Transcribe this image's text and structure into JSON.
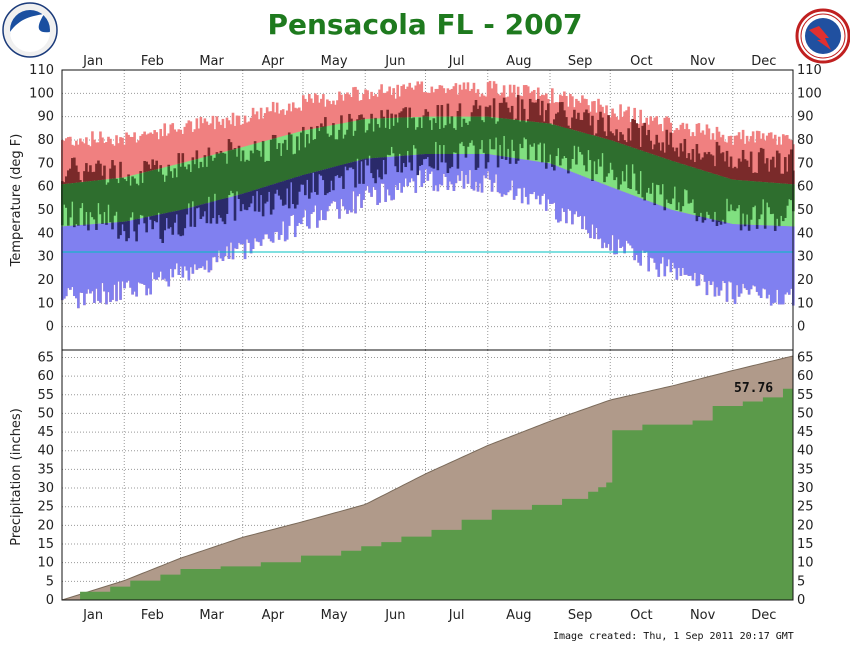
{
  "header": {
    "title": "Pensacola FL - 2007",
    "footer": "Image created: Thu, 1 Sep 2011 20:17 GMT"
  },
  "logos": {
    "left": "noaa-logo",
    "right": "national-weather-service-logo"
  },
  "colors": {
    "record_range": "#f08080",
    "normal_range": "#80e080",
    "actual_below": "#8080f0",
    "actual_dark_red": "#7a2a2a",
    "actual_dark_green": "#2e6e2e",
    "actual_dark_blue": "#2a2a6a",
    "normal_precip": "#b09a8a",
    "actual_precip": "#5b9a4a",
    "freezing_line": "#00c0c0",
    "title": "#1e7a1e"
  },
  "chart_data": [
    {
      "type": "bar",
      "panel": "temperature",
      "ylabel": "Temperature (deg F)",
      "ylim": [
        -10,
        110
      ],
      "yticks": [
        0,
        10,
        20,
        30,
        40,
        50,
        60,
        70,
        80,
        90,
        100,
        110
      ],
      "months": [
        "Jan",
        "Feb",
        "Mar",
        "Apr",
        "May",
        "Jun",
        "Jul",
        "Aug",
        "Sep",
        "Oct",
        "Nov",
        "Dec"
      ],
      "grid": true,
      "reference_line": 32,
      "series": [
        {
          "name": "record_range",
          "x_doy": [
            1,
            32,
            60,
            91,
            121,
            152,
            182,
            213,
            244,
            274,
            305,
            335,
            365
          ],
          "high": [
            79,
            80,
            84,
            89,
            95,
            99,
            101,
            101,
            98,
            92,
            85,
            80,
            79
          ],
          "low": [
            14,
            17,
            25,
            35,
            47,
            57,
            65,
            64,
            53,
            38,
            25,
            16,
            14
          ]
        },
        {
          "name": "normal_range",
          "x_doy": [
            1,
            32,
            60,
            91,
            121,
            152,
            182,
            213,
            244,
            274,
            305,
            335,
            365
          ],
          "high": [
            61,
            64,
            70,
            77,
            84,
            89,
            90,
            90,
            87,
            80,
            71,
            63,
            61
          ],
          "low": [
            43,
            45,
            50,
            57,
            65,
            72,
            74,
            74,
            70,
            60,
            50,
            44,
            43
          ]
        },
        {
          "name": "actual_2007_monthly",
          "x_doy": [
            16,
            46,
            75,
            106,
            136,
            167,
            197,
            228,
            259,
            289,
            320,
            350
          ],
          "high": [
            67,
            66,
            74,
            77,
            85,
            90,
            90,
            94,
            89,
            83,
            74,
            71
          ],
          "low": [
            47,
            41,
            50,
            54,
            63,
            71,
            73,
            76,
            71,
            62,
            48,
            48
          ]
        }
      ]
    },
    {
      "type": "area",
      "panel": "precipitation",
      "ylabel": "Precipitation (inches)",
      "ylim": [
        0,
        67
      ],
      "yticks": [
        0,
        5,
        10,
        15,
        20,
        25,
        30,
        35,
        40,
        45,
        50,
        55,
        60,
        65
      ],
      "grid": true,
      "series": [
        {
          "name": "normal_cumulative",
          "x_doy": [
            1,
            32,
            60,
            91,
            121,
            152,
            182,
            213,
            244,
            274,
            305,
            335,
            365
          ],
          "values": [
            0,
            5.2,
            11.2,
            16.8,
            21.0,
            25.6,
            33.8,
            41.4,
            47.9,
            53.6,
            57.4,
            61.5,
            65.4
          ]
        },
        {
          "name": "actual_cumulative_2007",
          "x_doy": [
            1,
            10,
            25,
            35,
            50,
            60,
            80,
            100,
            120,
            140,
            150,
            160,
            170,
            185,
            200,
            215,
            235,
            250,
            263,
            268,
            272,
            275,
            290,
            305,
            315,
            325,
            340,
            350,
            360,
            365
          ],
          "values": [
            0,
            2.2,
            3.6,
            5.2,
            6.8,
            8.3,
            9.0,
            10.1,
            11.9,
            13.2,
            14.4,
            15.5,
            17.0,
            18.8,
            21.5,
            24.2,
            25.5,
            27.1,
            29.0,
            30.2,
            31.5,
            45.5,
            47.0,
            47.0,
            48.1,
            52.0,
            53.2,
            54.3,
            56.6,
            57.76
          ]
        }
      ],
      "total_label": "57.76"
    }
  ]
}
